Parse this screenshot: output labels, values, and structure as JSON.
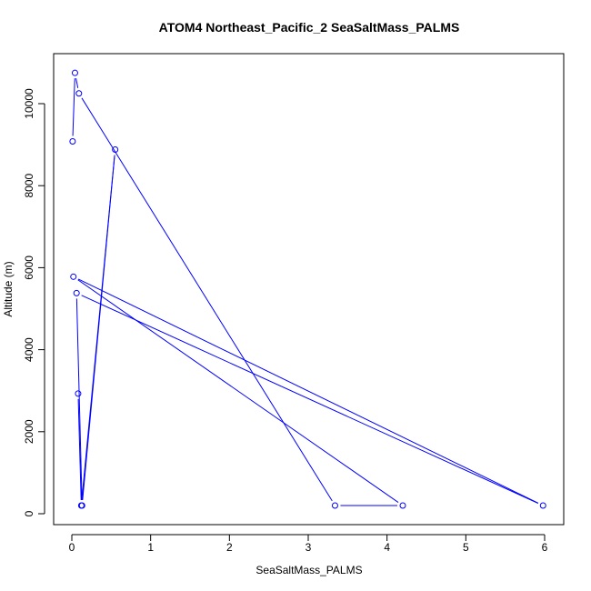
{
  "chart_data": {
    "type": "line",
    "title": "ATOM4 Northeast_Pacific_2 SeaSaltMass_PALMS",
    "xlabel": "SeaSaltMass_PALMS",
    "ylabel": "Altitude (m)",
    "xlim": [
      0,
      6
    ],
    "ylim": [
      0,
      10700
    ],
    "x_ticks": [
      0,
      1,
      2,
      3,
      4,
      5,
      6
    ],
    "x_tick_labels": [
      "0",
      "1",
      "2",
      "3",
      "4",
      "5",
      "6"
    ],
    "y_ticks": [
      0,
      2000,
      4000,
      6000,
      8000,
      10000
    ],
    "y_tick_labels": [
      "0",
      "2000",
      "4000",
      "6000",
      "8000",
      "10000"
    ],
    "grid": false,
    "legend": "none",
    "series": [
      {
        "color": "#0000ff",
        "marker": "open-circle",
        "x": [
          0.01,
          0.04,
          0.09,
          3.34,
          4.2,
          0.02,
          5.98,
          0.06,
          0.13,
          0.55,
          0.12,
          0.08
        ],
        "y": [
          9080,
          10750,
          10250,
          200,
          200,
          5780,
          200,
          5380,
          200,
          8880,
          200,
          2930
        ]
      }
    ]
  }
}
